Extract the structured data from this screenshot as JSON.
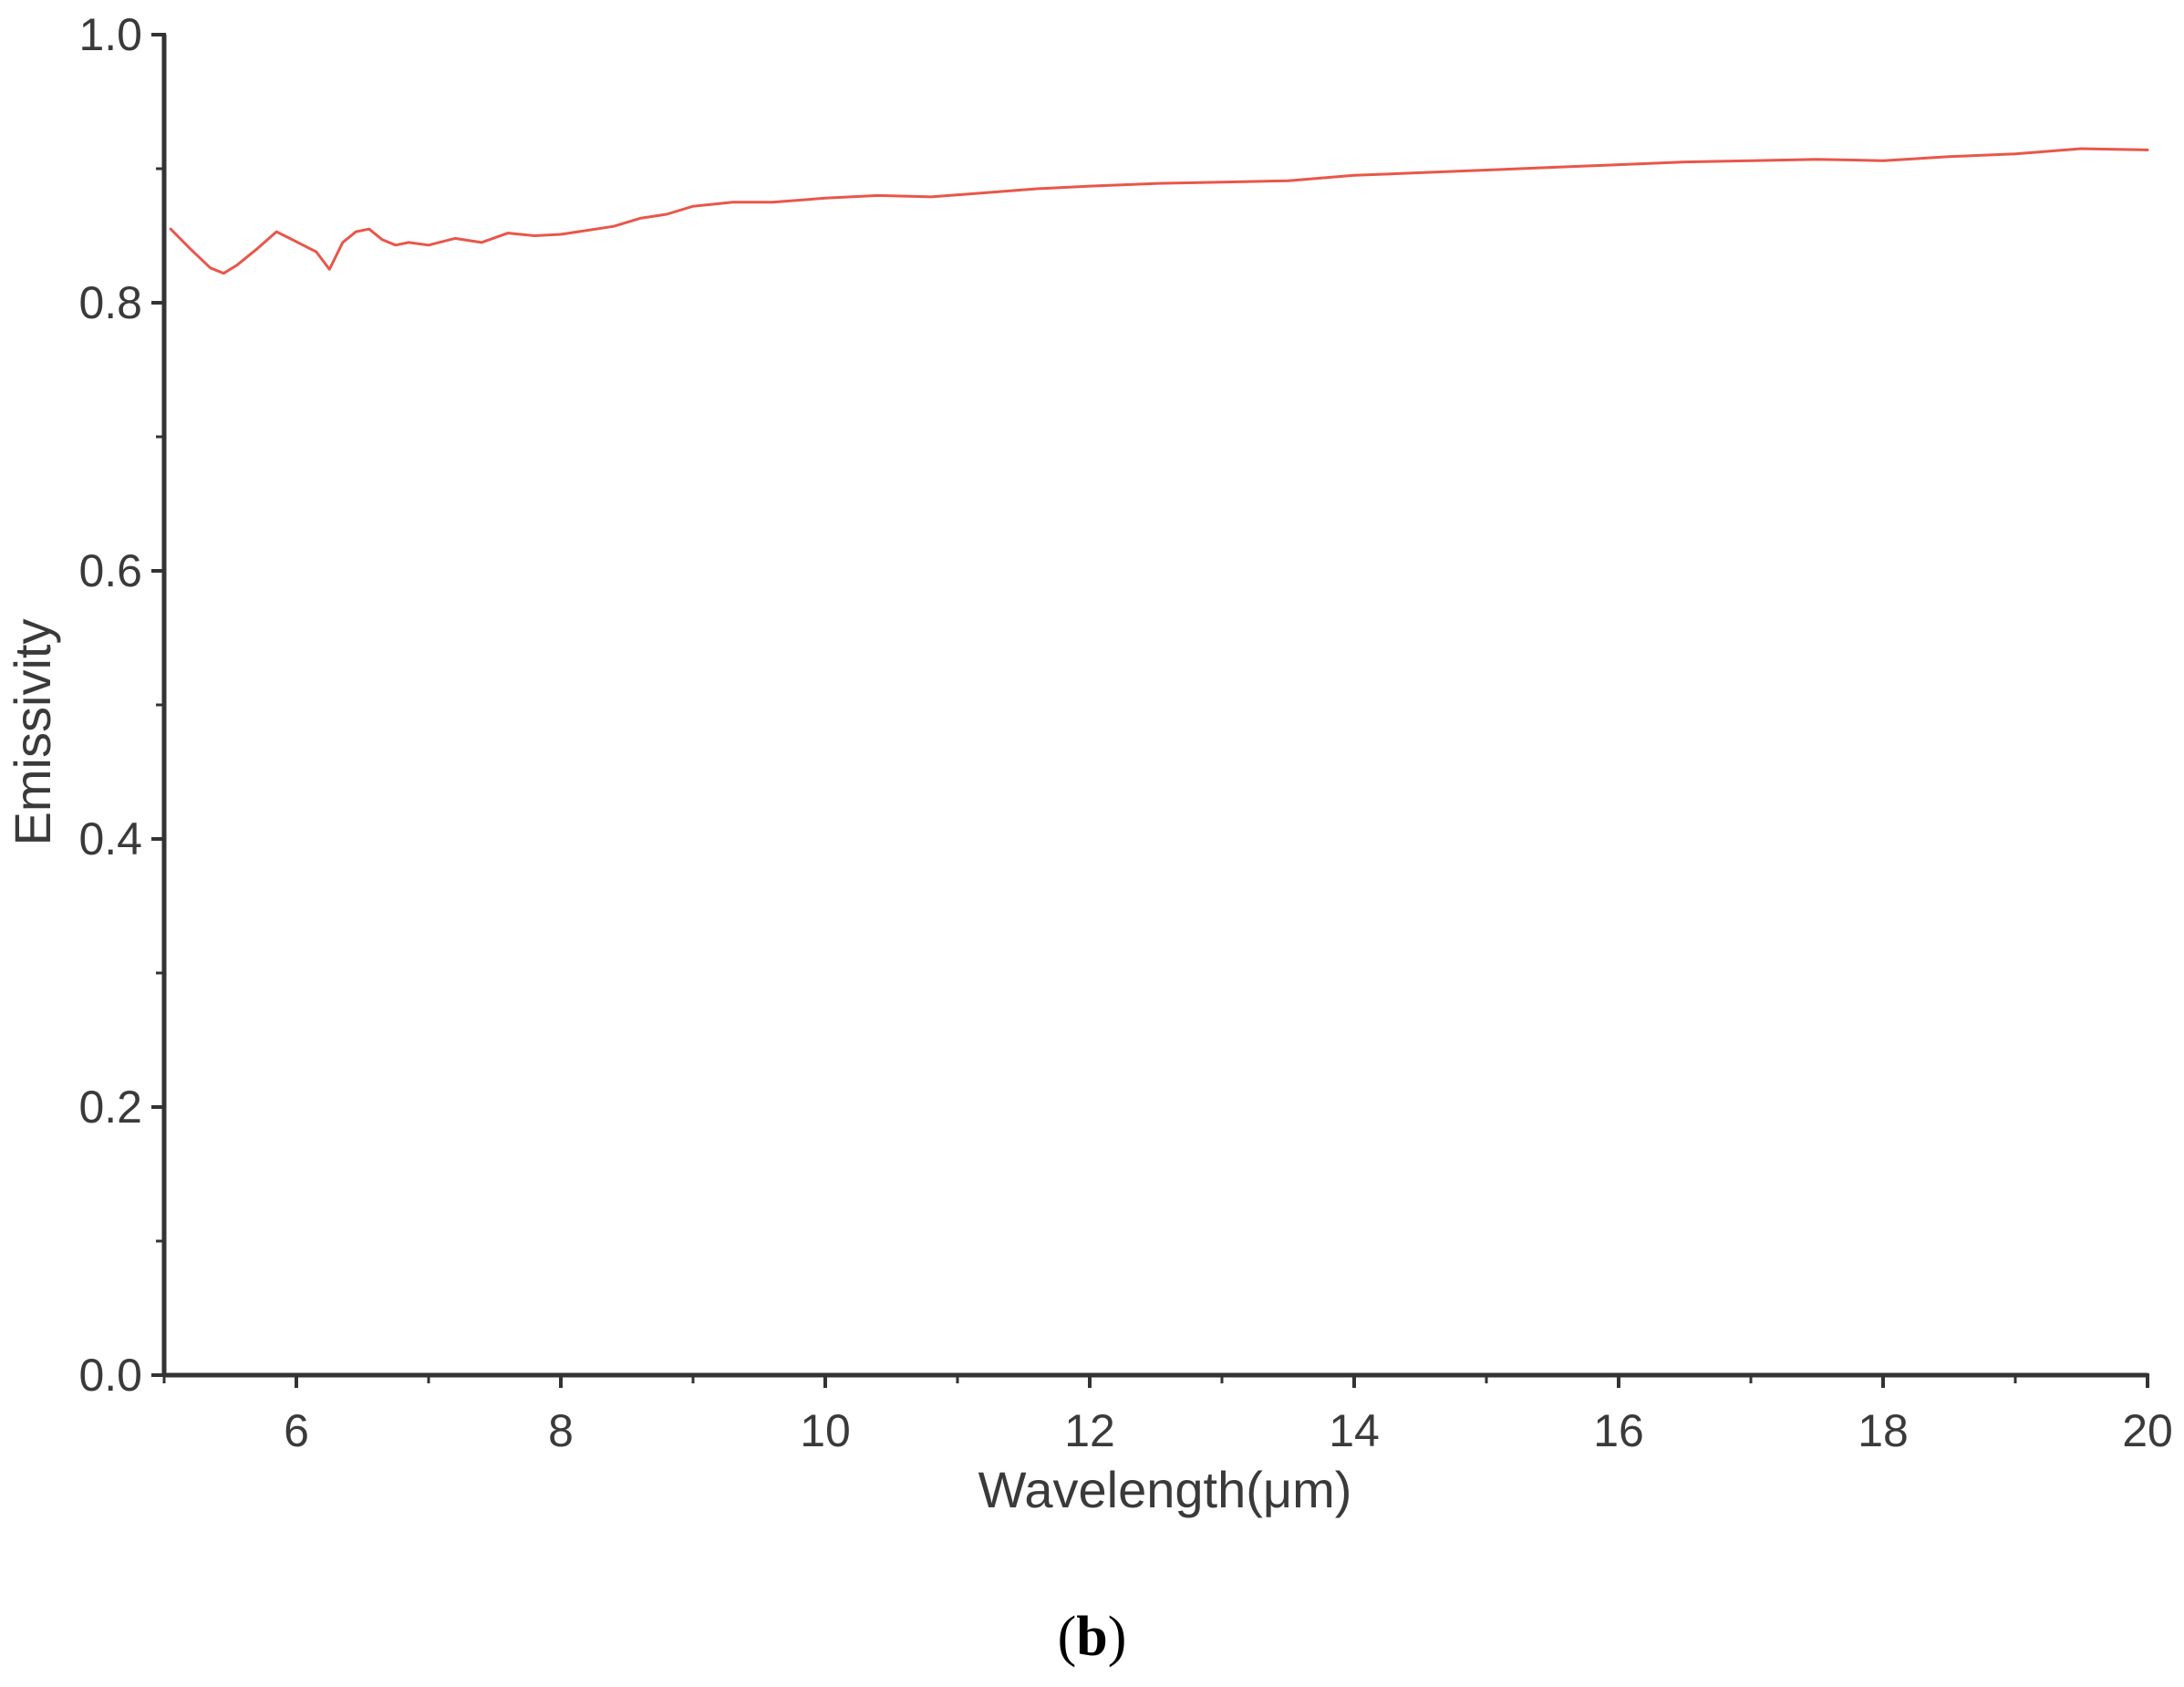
{
  "figure": {
    "panel_label_open": "(",
    "panel_label_letter": "b",
    "panel_label_close": ")"
  },
  "colors": {
    "series": "#e8574a",
    "axis": "#333333"
  },
  "chart_data": {
    "type": "line",
    "title": "",
    "xlabel": "Wavelength(μm)",
    "ylabel": "Emissivity",
    "xlim": [
      5,
      20
    ],
    "ylim": [
      0.0,
      1.0
    ],
    "x_ticks": [
      6,
      8,
      10,
      12,
      14,
      16,
      18,
      20
    ],
    "y_ticks": [
      0.0,
      0.2,
      0.4,
      0.6,
      0.8,
      1.0
    ],
    "x_tick_labels": [
      "6",
      "8",
      "10",
      "12",
      "14",
      "16",
      "18",
      "20"
    ],
    "y_tick_labels": [
      "0.0",
      "0.2",
      "0.4",
      "0.6",
      "0.8",
      "1.0"
    ],
    "grid": false,
    "legend": "none",
    "series": [
      {
        "x": [
          5.05,
          5.2,
          5.35,
          5.45,
          5.55,
          5.7,
          5.85,
          5.95,
          6.05,
          6.15,
          6.25,
          6.35,
          6.45,
          6.55,
          6.65,
          6.75,
          6.85,
          7.0,
          7.2,
          7.4,
          7.6,
          7.8,
          8.0,
          8.2,
          8.4,
          8.6,
          8.8,
          9.0,
          9.3,
          9.6,
          10.0,
          10.4,
          10.8,
          11.2,
          11.6,
          12.0,
          12.5,
          13.0,
          13.5,
          14.0,
          14.5,
          15.0,
          15.5,
          16.0,
          16.5,
          17.0,
          17.5,
          18.0,
          18.5,
          19.0,
          19.5,
          20.0
        ],
        "y": [
          0.855,
          0.84,
          0.826,
          0.822,
          0.828,
          0.84,
          0.853,
          0.848,
          0.843,
          0.838,
          0.825,
          0.845,
          0.853,
          0.855,
          0.847,
          0.843,
          0.845,
          0.843,
          0.848,
          0.845,
          0.852,
          0.85,
          0.851,
          0.854,
          0.857,
          0.863,
          0.866,
          0.872,
          0.875,
          0.875,
          0.878,
          0.88,
          0.879,
          0.882,
          0.885,
          0.887,
          0.889,
          0.89,
          0.891,
          0.895,
          0.897,
          0.899,
          0.901,
          0.903,
          0.905,
          0.906,
          0.907,
          0.906,
          0.909,
          0.911,
          0.915,
          0.914
        ]
      }
    ]
  }
}
